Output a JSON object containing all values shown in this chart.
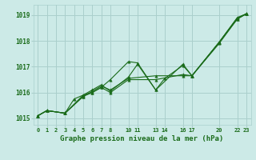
{
  "background_color": "#cceae7",
  "grid_color": "#aacfcc",
  "line_color": "#1a6b1a",
  "marker_color": "#1a6b1a",
  "xlabel": "Graphe pression niveau de la mer (hPa)",
  "ylim": [
    1014.75,
    1019.4
  ],
  "yticks": [
    1015,
    1016,
    1017,
    1018,
    1019
  ],
  "xtick_positions": [
    0,
    1,
    2,
    3,
    4,
    5,
    6,
    7,
    8,
    10,
    11,
    13,
    14,
    16,
    17,
    20,
    22,
    23
  ],
  "xtick_labels": [
    "0",
    "1",
    "2",
    "3",
    "4",
    "5",
    "6",
    "7",
    "8",
    "10",
    "11",
    "13",
    "14",
    "16",
    "17",
    "20",
    "22",
    "23"
  ],
  "xlim": [
    -0.5,
    23.5
  ],
  "lines": [
    {
      "x": [
        0,
        1,
        3,
        5,
        6,
        7,
        8,
        10,
        11,
        13,
        14,
        16,
        17,
        20,
        22,
        23
      ],
      "y": [
        1015.1,
        1015.3,
        1015.2,
        1015.9,
        1016.0,
        1016.2,
        1016.5,
        1017.2,
        1017.15,
        1016.1,
        1016.55,
        1017.05,
        1016.65,
        1017.95,
        1018.9,
        1019.05
      ]
    },
    {
      "x": [
        0,
        1,
        3,
        4,
        5,
        6,
        7,
        8,
        10,
        11,
        13,
        16,
        17,
        20,
        22,
        23
      ],
      "y": [
        1015.1,
        1015.3,
        1015.2,
        1015.75,
        1015.9,
        1016.1,
        1016.3,
        1016.05,
        1016.6,
        1017.1,
        1016.1,
        1017.1,
        1016.65,
        1017.95,
        1018.85,
        1019.05
      ]
    },
    {
      "x": [
        0,
        1,
        3,
        5,
        6,
        7,
        8,
        10,
        13,
        16,
        17,
        20,
        22,
        23
      ],
      "y": [
        1015.1,
        1015.3,
        1015.2,
        1015.85,
        1016.05,
        1016.25,
        1016.1,
        1016.55,
        1016.65,
        1016.65,
        1016.65,
        1017.95,
        1018.9,
        1019.05
      ]
    },
    {
      "x": [
        0,
        1,
        3,
        5,
        6,
        7,
        8,
        10,
        13,
        16,
        17,
        20,
        22,
        23
      ],
      "y": [
        1015.1,
        1015.3,
        1015.2,
        1015.85,
        1016.0,
        1016.2,
        1016.0,
        1016.5,
        1016.5,
        1016.7,
        1016.65,
        1017.9,
        1018.85,
        1019.05
      ]
    }
  ]
}
